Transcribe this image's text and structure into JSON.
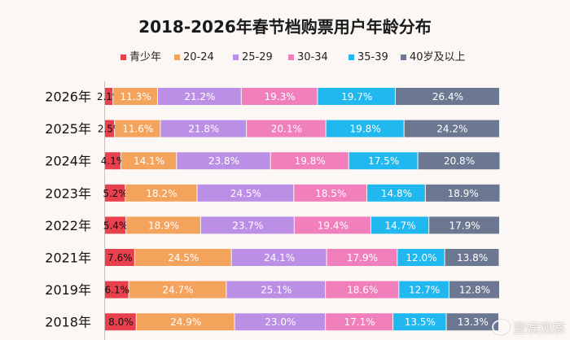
{
  "chart_data": {
    "type": "bar",
    "stacked": true,
    "orientation": "horizontal",
    "title": "2018-2026年春节档购票用户年龄分布",
    "categories": [
      "2026年",
      "2025年",
      "2024年",
      "2023年",
      "2022年",
      "2021年",
      "2019年",
      "2018年"
    ],
    "series": [
      {
        "name": "青少年",
        "color": "#e8404d",
        "values": [
          2.1,
          2.5,
          4.1,
          5.2,
          5.4,
          7.6,
          6.1,
          8.0
        ],
        "labels": [
          "2.1%",
          "2.5%",
          "4.1%",
          "5.2%",
          "5.4%",
          "7.6%",
          "6.1%",
          "8.0%"
        ]
      },
      {
        "name": "20-24",
        "color": "#f4a35d",
        "values": [
          11.3,
          11.6,
          14.1,
          18.2,
          18.9,
          24.5,
          24.7,
          24.9
        ],
        "labels": [
          "11.3%",
          "11.6%",
          "14.1%",
          "18.2%",
          "18.9%",
          "24.5%",
          "24.7%",
          "24.9%"
        ]
      },
      {
        "name": "25-29",
        "color": "#bc8fe6",
        "values": [
          21.2,
          21.8,
          23.8,
          24.5,
          23.7,
          24.1,
          25.1,
          23.0
        ],
        "labels": [
          "21.2%",
          "21.8%",
          "23.8%",
          "24.5%",
          "23.7%",
          "24.1%",
          "25.1%",
          "23.0%"
        ]
      },
      {
        "name": "30-34",
        "color": "#f07fbc",
        "values": [
          19.3,
          20.1,
          19.8,
          18.5,
          19.4,
          17.9,
          18.6,
          17.1
        ],
        "labels": [
          "19.3%",
          "20.1%",
          "19.8%",
          "18.5%",
          "19.4%",
          "17.9%",
          "18.6%",
          "17.1%"
        ]
      },
      {
        "name": "35-39",
        "color": "#21b8ef",
        "values": [
          19.7,
          19.8,
          17.5,
          14.8,
          14.7,
          12.0,
          12.7,
          13.5
        ],
        "labels": [
          "19.7%",
          "19.8%",
          "17.5%",
          "14.8%",
          "14.7%",
          "12.0%",
          "12.7%",
          "13.5%"
        ]
      },
      {
        "name": "40岁及以上",
        "color": "#6c7892",
        "values": [
          26.4,
          24.2,
          20.8,
          18.9,
          17.9,
          13.8,
          12.8,
          13.3
        ],
        "labels": [
          "26.4%",
          "24.2%",
          "20.8%",
          "18.9%",
          "17.9%",
          "13.8%",
          "12.8%",
          "13.3%"
        ]
      }
    ],
    "xlim": [
      0,
      100
    ],
    "grid": false,
    "legend_position": "top"
  },
  "watermark": {
    "text": "壹娱观察"
  }
}
